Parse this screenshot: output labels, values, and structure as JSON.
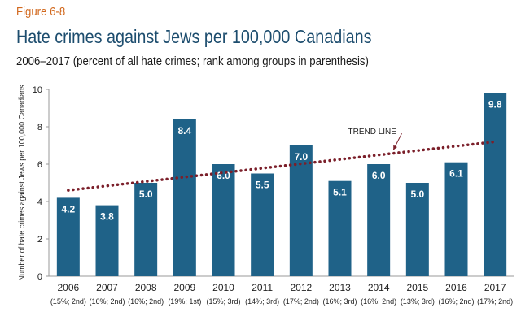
{
  "figure_label": "Figure 6-8",
  "title": "Hate crimes against Jews per 100,000 Canadians",
  "subtitle": "2006–2017 (percent of all hate crimes; rank among groups in parenthesis)",
  "colors": {
    "bar": "#1f6288",
    "trend": "#7b1f2a",
    "title": "#1d4d6e",
    "figure_label": "#d2691e"
  },
  "chart_data": {
    "type": "bar",
    "categories": [
      "2006",
      "2007",
      "2008",
      "2009",
      "2010",
      "2011",
      "2012",
      "2013",
      "2014",
      "2015",
      "2016",
      "2017"
    ],
    "sublabels": [
      "(15%; 2nd)",
      "(16%; 2nd)",
      "(16%; 2nd)",
      "(19%; 1st)",
      "(15%; 3rd)",
      "(14%; 3rd)",
      "(17%; 2nd)",
      "(16%; 3rd)",
      "(16%; 2nd)",
      "(13%; 3rd)",
      "(16%; 2nd)",
      "(17%; 2nd)"
    ],
    "values": [
      4.2,
      3.8,
      5.0,
      8.4,
      6.0,
      5.5,
      7.0,
      5.1,
      6.0,
      5.0,
      6.1,
      9.8
    ],
    "data_labels": [
      "4.2",
      "3.8",
      "5.0",
      "8.4",
      "6.0",
      "5.5",
      "7.0",
      "5.1",
      "6.0",
      "5.0",
      "6.1",
      "9.8"
    ],
    "ylabel": "Number of hate crimes against Jews per 100,000 Canadians",
    "ylim": [
      0,
      10
    ],
    "yticks": [
      0,
      2,
      4,
      6,
      8,
      10
    ],
    "trend_line": {
      "label": "TREND LINE",
      "start": 4.6,
      "end": 7.2
    },
    "grid": false,
    "legend": "none"
  }
}
